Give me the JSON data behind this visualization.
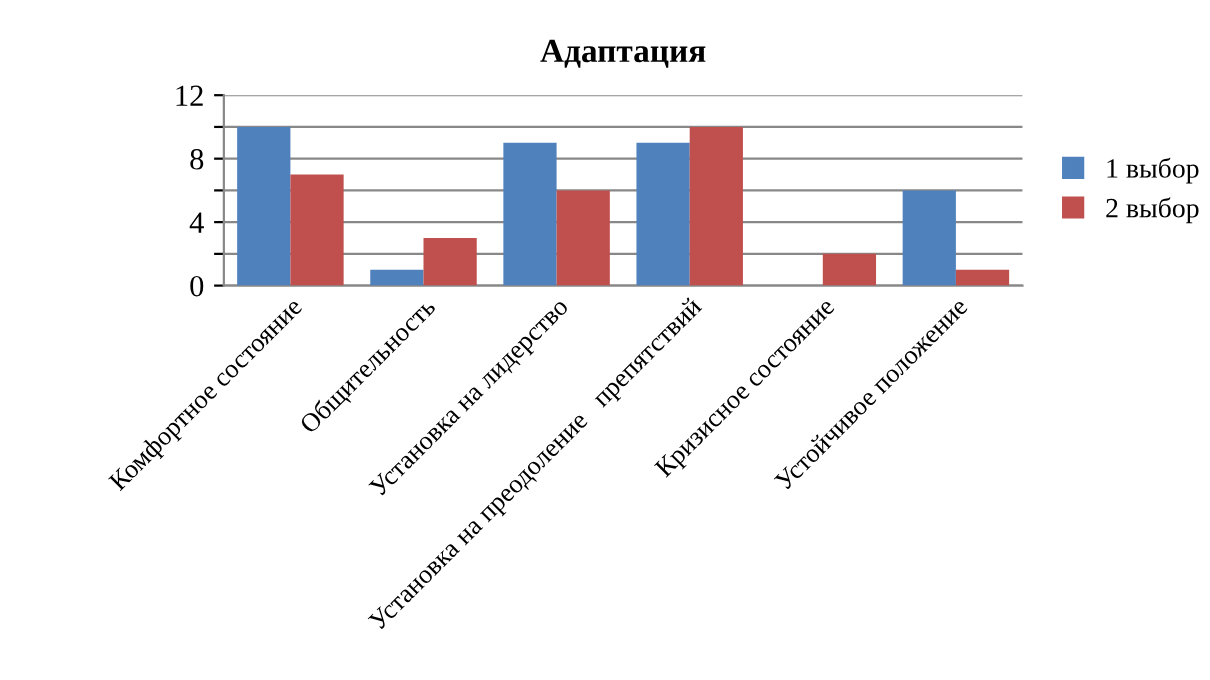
{
  "chart_data": {
    "type": "bar",
    "title": "Адаптация",
    "categories": [
      "Комфортное состояние",
      "Общительность",
      "Установка на лидерство",
      "Установка на преодоление   препятствий",
      "Кризисное состояние",
      "Устойчивое положение"
    ],
    "series": [
      {
        "name": "1 выбор",
        "color": "#4f81bd",
        "values": [
          10,
          1,
          9,
          9,
          0,
          6
        ]
      },
      {
        "name": "2 выбор",
        "color": "#c0504d",
        "values": [
          7,
          3,
          6,
          10,
          2,
          1
        ]
      }
    ],
    "ylim": [
      0,
      12
    ],
    "yticks": [
      0,
      {
        "value": 2,
        "label": null
      },
      4,
      {
        "value": 6,
        "label": null
      },
      8,
      {
        "value": 10,
        "label": null
      },
      12
    ],
    "grid": "y",
    "legend": "right"
  }
}
